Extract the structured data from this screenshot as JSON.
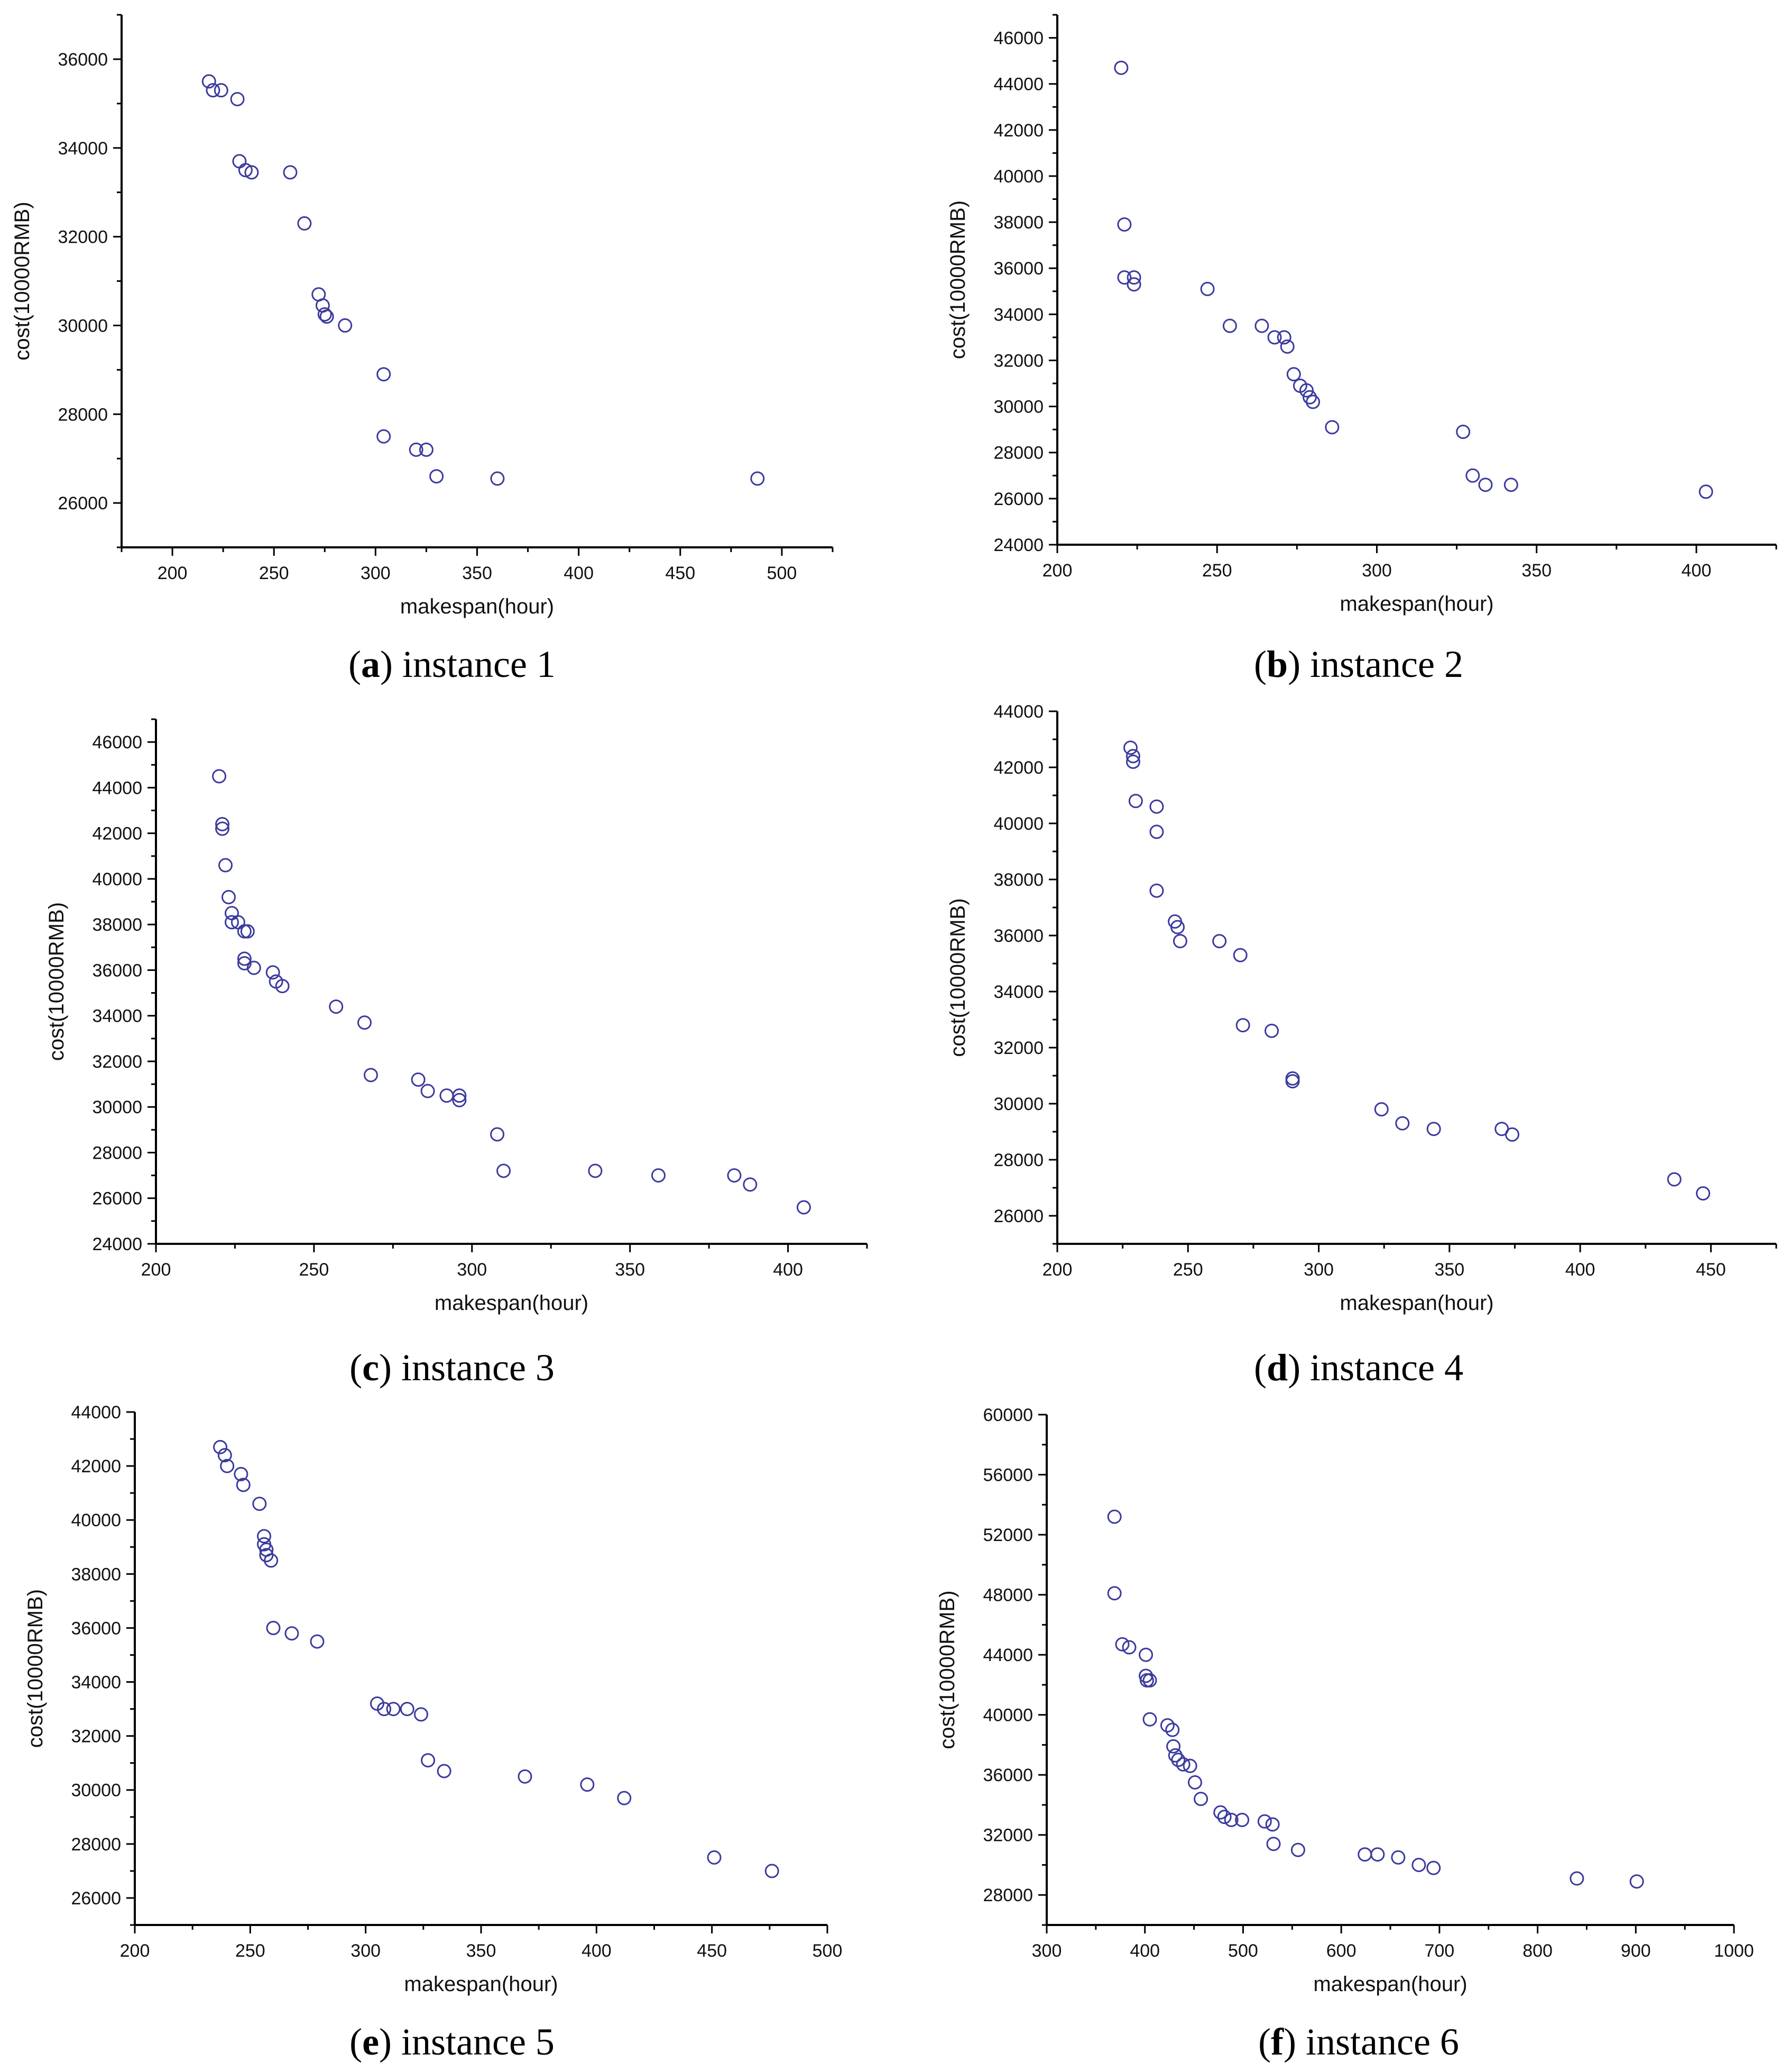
{
  "figure": {
    "point_color": "#3b3b9e",
    "axis_color": "#000000"
  },
  "chart_data": [
    {
      "type": "scatter",
      "caption_letter": "a",
      "caption_text": "instance 1",
      "xlabel": "makespan(hour)",
      "ylabel": "cost(10000RMB)",
      "xlim": [
        175,
        525
      ],
      "ylim": [
        25000,
        37000
      ],
      "xticks": [
        200,
        250,
        300,
        350,
        400,
        450,
        500
      ],
      "yticks": [
        26000,
        28000,
        30000,
        32000,
        34000,
        36000
      ],
      "grid": false,
      "points": [
        [
          218,
          35500
        ],
        [
          220,
          35300
        ],
        [
          224,
          35300
        ],
        [
          232,
          35100
        ],
        [
          233,
          33700
        ],
        [
          236,
          33500
        ],
        [
          239,
          33450
        ],
        [
          258,
          33450
        ],
        [
          265,
          32300
        ],
        [
          272,
          30700
        ],
        [
          274,
          30450
        ],
        [
          275,
          30250
        ],
        [
          276,
          30200
        ],
        [
          285,
          30000
        ],
        [
          304,
          28900
        ],
        [
          304,
          27500
        ],
        [
          320,
          27200
        ],
        [
          325,
          27200
        ],
        [
          330,
          26600
        ],
        [
          360,
          26550
        ],
        [
          488,
          26550
        ]
      ]
    },
    {
      "type": "scatter",
      "caption_letter": "b",
      "caption_text": "instance 2",
      "xlabel": "makespan(hour)",
      "ylabel": "cost(10000RMB)",
      "xlim": [
        200,
        425
      ],
      "ylim": [
        24000,
        47000
      ],
      "xticks": [
        200,
        250,
        300,
        350,
        400
      ],
      "yticks": [
        24000,
        26000,
        28000,
        30000,
        32000,
        34000,
        36000,
        38000,
        40000,
        42000,
        44000,
        46000
      ],
      "grid": false,
      "points": [
        [
          220,
          44700
        ],
        [
          221,
          37900
        ],
        [
          221,
          35600
        ],
        [
          224,
          35600
        ],
        [
          224,
          35300
        ],
        [
          247,
          35100
        ],
        [
          254,
          33500
        ],
        [
          264,
          33500
        ],
        [
          268,
          33000
        ],
        [
          271,
          33000
        ],
        [
          272,
          32600
        ],
        [
          274,
          31400
        ],
        [
          276,
          30900
        ],
        [
          278,
          30700
        ],
        [
          279,
          30400
        ],
        [
          280,
          30200
        ],
        [
          286,
          29100
        ],
        [
          327,
          28900
        ],
        [
          330,
          27000
        ],
        [
          334,
          26600
        ],
        [
          342,
          26600
        ],
        [
          403,
          26300
        ]
      ]
    },
    {
      "type": "scatter",
      "caption_letter": "c",
      "caption_text": "instance 3",
      "xlabel": "makespan(hour)",
      "ylabel": "cost(10000RMB)",
      "xlim": [
        200,
        425
      ],
      "ylim": [
        24000,
        47000
      ],
      "xticks": [
        200,
        250,
        300,
        350,
        400
      ],
      "yticks": [
        24000,
        26000,
        28000,
        30000,
        32000,
        34000,
        36000,
        38000,
        40000,
        42000,
        44000,
        46000
      ],
      "grid": false,
      "points": [
        [
          220,
          44500
        ],
        [
          221,
          42400
        ],
        [
          221,
          42200
        ],
        [
          222,
          40600
        ],
        [
          223,
          39200
        ],
        [
          224,
          38500
        ],
        [
          224,
          38100
        ],
        [
          226,
          38100
        ],
        [
          228,
          37700
        ],
        [
          229,
          37700
        ],
        [
          228,
          36500
        ],
        [
          228,
          36300
        ],
        [
          231,
          36100
        ],
        [
          237,
          35900
        ],
        [
          238,
          35500
        ],
        [
          240,
          35300
        ],
        [
          257,
          34400
        ],
        [
          266,
          33700
        ],
        [
          268,
          31400
        ],
        [
          283,
          31200
        ],
        [
          286,
          30700
        ],
        [
          292,
          30500
        ],
        [
          296,
          30500
        ],
        [
          296,
          30300
        ],
        [
          308,
          28800
        ],
        [
          310,
          27200
        ],
        [
          339,
          27200
        ],
        [
          359,
          27000
        ],
        [
          383,
          27000
        ],
        [
          388,
          26600
        ],
        [
          405,
          25600
        ]
      ]
    },
    {
      "type": "scatter",
      "caption_letter": "d",
      "caption_text": "instance 4",
      "xlabel": "makespan(hour)",
      "ylabel": "cost(10000RMB)",
      "xlim": [
        200,
        475
      ],
      "ylim": [
        25000,
        44000
      ],
      "xticks": [
        200,
        250,
        300,
        350,
        400,
        450
      ],
      "yticks": [
        26000,
        28000,
        30000,
        32000,
        34000,
        36000,
        38000,
        40000,
        42000,
        44000
      ],
      "grid": false,
      "points": [
        [
          228,
          42700
        ],
        [
          229,
          42400
        ],
        [
          229,
          42200
        ],
        [
          230,
          40800
        ],
        [
          238,
          40600
        ],
        [
          238,
          39700
        ],
        [
          238,
          37600
        ],
        [
          245,
          36500
        ],
        [
          246,
          36300
        ],
        [
          247,
          35800
        ],
        [
          262,
          35800
        ],
        [
          270,
          35300
        ],
        [
          271,
          32800
        ],
        [
          282,
          32600
        ],
        [
          290,
          30900
        ],
        [
          290,
          30800
        ],
        [
          324,
          29800
        ],
        [
          332,
          29300
        ],
        [
          344,
          29100
        ],
        [
          370,
          29100
        ],
        [
          374,
          28900
        ],
        [
          436,
          27300
        ],
        [
          447,
          26800
        ]
      ]
    },
    {
      "type": "scatter",
      "caption_letter": "e",
      "caption_text": "instance 5",
      "xlabel": "makespan(hour)",
      "ylabel": "cost(10000RMB)",
      "xlim": [
        200,
        500
      ],
      "ylim": [
        25000,
        44000
      ],
      "xticks": [
        200,
        250,
        300,
        350,
        400,
        450,
        500
      ],
      "yticks": [
        26000,
        28000,
        30000,
        32000,
        34000,
        36000,
        38000,
        40000,
        42000,
        44000
      ],
      "grid": false,
      "points": [
        [
          237,
          42700
        ],
        [
          239,
          42400
        ],
        [
          240,
          42000
        ],
        [
          246,
          41700
        ],
        [
          247,
          41300
        ],
        [
          254,
          40600
        ],
        [
          256,
          39400
        ],
        [
          256,
          39100
        ],
        [
          257,
          38900
        ],
        [
          257,
          38700
        ],
        [
          259,
          38500
        ],
        [
          260,
          36000
        ],
        [
          268,
          35800
        ],
        [
          279,
          35500
        ],
        [
          305,
          33200
        ],
        [
          308,
          33000
        ],
        [
          312,
          33000
        ],
        [
          318,
          33000
        ],
        [
          324,
          32800
        ],
        [
          327,
          31100
        ],
        [
          334,
          30700
        ],
        [
          369,
          30500
        ],
        [
          396,
          30200
        ],
        [
          412,
          29700
        ],
        [
          451,
          27500
        ],
        [
          476,
          27000
        ]
      ]
    },
    {
      "type": "scatter",
      "caption_letter": "f",
      "caption_text": "instance 6",
      "xlabel": "makespan(hour)",
      "ylabel": "cost(10000RMB)",
      "xlim": [
        300,
        1000
      ],
      "ylim": [
        26000,
        60000
      ],
      "xticks": [
        300,
        400,
        500,
        600,
        700,
        800,
        900,
        1000
      ],
      "yticks": [
        28000,
        32000,
        36000,
        40000,
        44000,
        48000,
        52000,
        56000,
        60000
      ],
      "grid": false,
      "points": [
        [
          369,
          53200
        ],
        [
          369,
          48100
        ],
        [
          377,
          44700
        ],
        [
          384,
          44500
        ],
        [
          401,
          44000
        ],
        [
          401,
          42600
        ],
        [
          402,
          42300
        ],
        [
          405,
          42300
        ],
        [
          405,
          39700
        ],
        [
          423,
          39300
        ],
        [
          428,
          39000
        ],
        [
          429,
          37900
        ],
        [
          431,
          37300
        ],
        [
          434,
          37000
        ],
        [
          439,
          36700
        ],
        [
          446,
          36600
        ],
        [
          451,
          35500
        ],
        [
          457,
          34400
        ],
        [
          477,
          33500
        ],
        [
          481,
          33200
        ],
        [
          488,
          33000
        ],
        [
          499,
          33000
        ],
        [
          522,
          32900
        ],
        [
          530,
          32700
        ],
        [
          531,
          31400
        ],
        [
          556,
          31000
        ],
        [
          624,
          30700
        ],
        [
          637,
          30700
        ],
        [
          658,
          30500
        ],
        [
          679,
          30000
        ],
        [
          694,
          29800
        ],
        [
          840,
          29100
        ],
        [
          901,
          28900
        ]
      ]
    }
  ]
}
